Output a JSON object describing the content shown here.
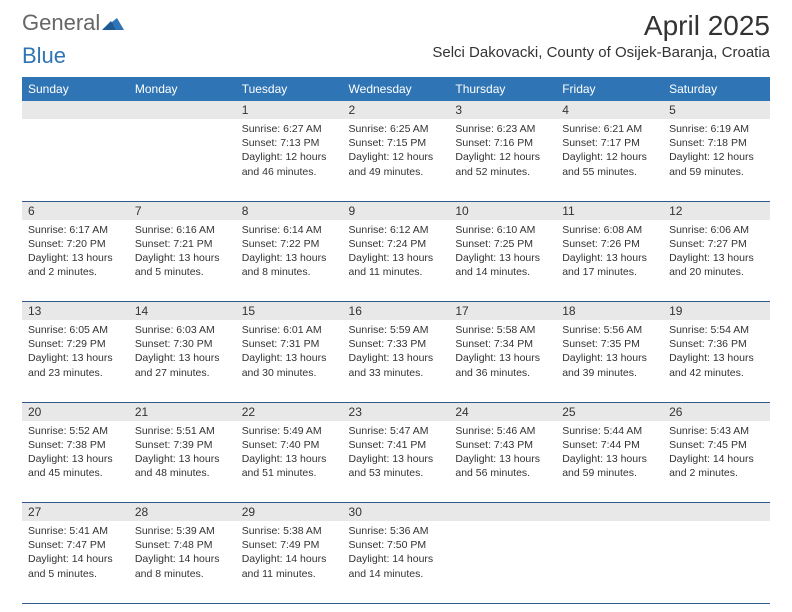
{
  "brand": {
    "part1": "General",
    "part2": "Blue"
  },
  "title": {
    "month": "April 2025",
    "location": "Selci Dakovacki, County of Osijek-Baranja, Croatia"
  },
  "colors": {
    "header_bg": "#2f75b5",
    "header_fg": "#ffffff",
    "daynum_bg": "#e8e8e8",
    "border": "#2f5a8a",
    "text": "#333333"
  },
  "weekdays": [
    "Sunday",
    "Monday",
    "Tuesday",
    "Wednesday",
    "Thursday",
    "Friday",
    "Saturday"
  ],
  "first_weekday_index": 2,
  "days": [
    {
      "n": 1,
      "sunrise": "6:27 AM",
      "sunset": "7:13 PM",
      "daylight": "12 hours and 46 minutes."
    },
    {
      "n": 2,
      "sunrise": "6:25 AM",
      "sunset": "7:15 PM",
      "daylight": "12 hours and 49 minutes."
    },
    {
      "n": 3,
      "sunrise": "6:23 AM",
      "sunset": "7:16 PM",
      "daylight": "12 hours and 52 minutes."
    },
    {
      "n": 4,
      "sunrise": "6:21 AM",
      "sunset": "7:17 PM",
      "daylight": "12 hours and 55 minutes."
    },
    {
      "n": 5,
      "sunrise": "6:19 AM",
      "sunset": "7:18 PM",
      "daylight": "12 hours and 59 minutes."
    },
    {
      "n": 6,
      "sunrise": "6:17 AM",
      "sunset": "7:20 PM",
      "daylight": "13 hours and 2 minutes."
    },
    {
      "n": 7,
      "sunrise": "6:16 AM",
      "sunset": "7:21 PM",
      "daylight": "13 hours and 5 minutes."
    },
    {
      "n": 8,
      "sunrise": "6:14 AM",
      "sunset": "7:22 PM",
      "daylight": "13 hours and 8 minutes."
    },
    {
      "n": 9,
      "sunrise": "6:12 AM",
      "sunset": "7:24 PM",
      "daylight": "13 hours and 11 minutes."
    },
    {
      "n": 10,
      "sunrise": "6:10 AM",
      "sunset": "7:25 PM",
      "daylight": "13 hours and 14 minutes."
    },
    {
      "n": 11,
      "sunrise": "6:08 AM",
      "sunset": "7:26 PM",
      "daylight": "13 hours and 17 minutes."
    },
    {
      "n": 12,
      "sunrise": "6:06 AM",
      "sunset": "7:27 PM",
      "daylight": "13 hours and 20 minutes."
    },
    {
      "n": 13,
      "sunrise": "6:05 AM",
      "sunset": "7:29 PM",
      "daylight": "13 hours and 23 minutes."
    },
    {
      "n": 14,
      "sunrise": "6:03 AM",
      "sunset": "7:30 PM",
      "daylight": "13 hours and 27 minutes."
    },
    {
      "n": 15,
      "sunrise": "6:01 AM",
      "sunset": "7:31 PM",
      "daylight": "13 hours and 30 minutes."
    },
    {
      "n": 16,
      "sunrise": "5:59 AM",
      "sunset": "7:33 PM",
      "daylight": "13 hours and 33 minutes."
    },
    {
      "n": 17,
      "sunrise": "5:58 AM",
      "sunset": "7:34 PM",
      "daylight": "13 hours and 36 minutes."
    },
    {
      "n": 18,
      "sunrise": "5:56 AM",
      "sunset": "7:35 PM",
      "daylight": "13 hours and 39 minutes."
    },
    {
      "n": 19,
      "sunrise": "5:54 AM",
      "sunset": "7:36 PM",
      "daylight": "13 hours and 42 minutes."
    },
    {
      "n": 20,
      "sunrise": "5:52 AM",
      "sunset": "7:38 PM",
      "daylight": "13 hours and 45 minutes."
    },
    {
      "n": 21,
      "sunrise": "5:51 AM",
      "sunset": "7:39 PM",
      "daylight": "13 hours and 48 minutes."
    },
    {
      "n": 22,
      "sunrise": "5:49 AM",
      "sunset": "7:40 PM",
      "daylight": "13 hours and 51 minutes."
    },
    {
      "n": 23,
      "sunrise": "5:47 AM",
      "sunset": "7:41 PM",
      "daylight": "13 hours and 53 minutes."
    },
    {
      "n": 24,
      "sunrise": "5:46 AM",
      "sunset": "7:43 PM",
      "daylight": "13 hours and 56 minutes."
    },
    {
      "n": 25,
      "sunrise": "5:44 AM",
      "sunset": "7:44 PM",
      "daylight": "13 hours and 59 minutes."
    },
    {
      "n": 26,
      "sunrise": "5:43 AM",
      "sunset": "7:45 PM",
      "daylight": "14 hours and 2 minutes."
    },
    {
      "n": 27,
      "sunrise": "5:41 AM",
      "sunset": "7:47 PM",
      "daylight": "14 hours and 5 minutes."
    },
    {
      "n": 28,
      "sunrise": "5:39 AM",
      "sunset": "7:48 PM",
      "daylight": "14 hours and 8 minutes."
    },
    {
      "n": 29,
      "sunrise": "5:38 AM",
      "sunset": "7:49 PM",
      "daylight": "14 hours and 11 minutes."
    },
    {
      "n": 30,
      "sunrise": "5:36 AM",
      "sunset": "7:50 PM",
      "daylight": "14 hours and 14 minutes."
    }
  ],
  "labels": {
    "sunrise": "Sunrise:",
    "sunset": "Sunset:",
    "daylight": "Daylight:"
  }
}
